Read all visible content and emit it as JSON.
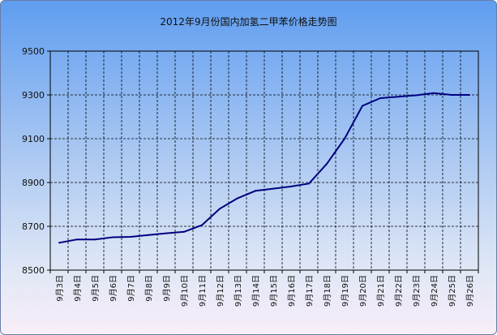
{
  "chart_data": {
    "type": "line",
    "title": "2012年9月份国内加氢二甲苯价格走势图",
    "categories": [
      "9月3日",
      "9月4日",
      "9月5日",
      "9月6日",
      "9月7日",
      "9月8日",
      "9月9日",
      "9月10日",
      "9月11日",
      "9月12日",
      "9月13日",
      "9月14日",
      "9月15日",
      "9月16日",
      "9月17日",
      "9月18日",
      "9月19日",
      "9月20日",
      "9月21日",
      "9月22日",
      "9月23日",
      "9月24日",
      "9月25日",
      "9月26日"
    ],
    "values": [
      8625,
      8640,
      8640,
      8650,
      8652,
      8660,
      8668,
      8675,
      8705,
      8780,
      8828,
      8862,
      8872,
      8882,
      8895,
      8985,
      9100,
      9250,
      9285,
      9292,
      9298,
      9308,
      9300,
      9300
    ],
    "ylim": [
      8500,
      9500
    ],
    "yticks": [
      8500,
      8700,
      8900,
      9100,
      9300,
      9500
    ],
    "grid": true,
    "line_color": "#000080"
  }
}
